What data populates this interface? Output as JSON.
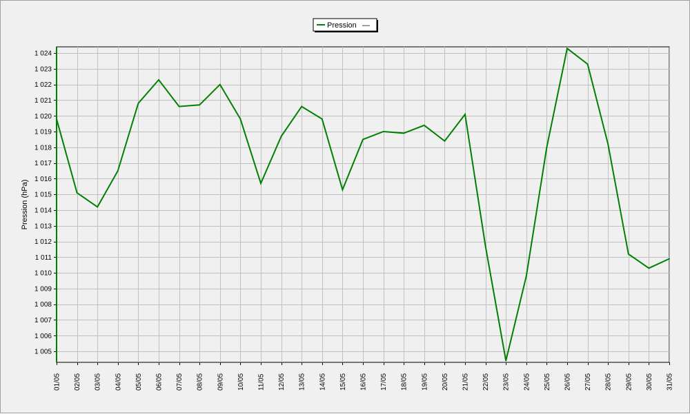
{
  "chart_data": {
    "type": "line",
    "x": [
      "01/05",
      "02/05",
      "03/05",
      "04/05",
      "05/05",
      "06/05",
      "07/05",
      "08/05",
      "09/05",
      "10/05",
      "11/05",
      "12/05",
      "13/05",
      "14/05",
      "15/05",
      "16/05",
      "17/05",
      "18/05",
      "19/05",
      "20/05",
      "21/05",
      "22/05",
      "23/05",
      "24/05",
      "25/05",
      "26/05",
      "27/05",
      "28/05",
      "29/05",
      "30/05",
      "31/05"
    ],
    "series": [
      {
        "name": "Pression",
        "color": "#008000",
        "values": [
          1019.8,
          1015.1,
          1014.2,
          1016.5,
          1020.8,
          1022.3,
          1020.6,
          1020.7,
          1022.0,
          1019.8,
          1015.7,
          1018.7,
          1020.6,
          1019.8,
          1015.3,
          1018.5,
          1019.0,
          1018.9,
          1019.4,
          1018.4,
          1020.1,
          1011.7,
          1004.4,
          1009.8,
          1018.0,
          1024.3,
          1023.3,
          1018.2,
          1011.2,
          1010.3,
          1010.9
        ]
      }
    ],
    "ylabel": "Pression (hPa)",
    "xlabel": "",
    "ylim": [
      1004.3,
      1024.4
    ],
    "yticks": [
      1005,
      1006,
      1007,
      1008,
      1009,
      1010,
      1011,
      1012,
      1013,
      1014,
      1015,
      1016,
      1017,
      1018,
      1019,
      1020,
      1021,
      1022,
      1023,
      1024
    ],
    "ytick_labels": [
      "1 005",
      "1 006",
      "1 007",
      "1 008",
      "1 009",
      "1 010",
      "1 011",
      "1 012",
      "1 013",
      "1 014",
      "1 015",
      "1 016",
      "1 017",
      "1 018",
      "1 019",
      "1 020",
      "1 021",
      "1 022",
      "1 023",
      "1 024"
    ],
    "grid": true,
    "legend_position": "top-center",
    "legend_entries": [
      "Pression"
    ],
    "legend_extra": "—"
  }
}
